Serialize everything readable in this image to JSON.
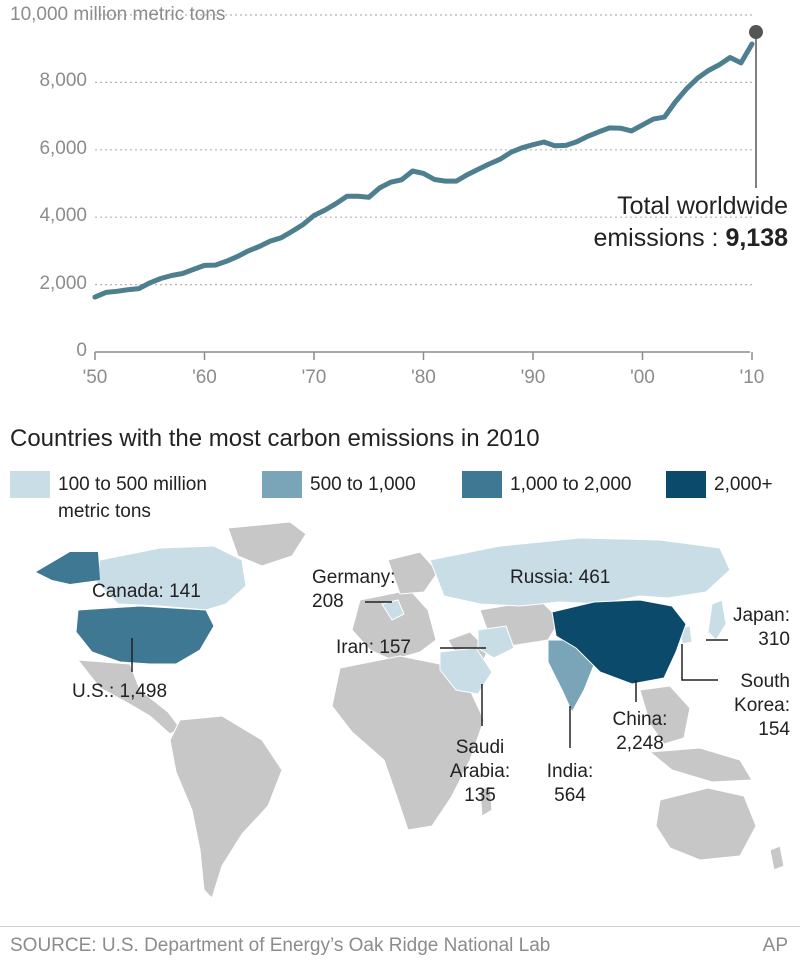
{
  "chart_data": {
    "type": "line",
    "unit_label": "10,000 million metric tons",
    "ylim": [
      0,
      10000
    ],
    "yticks": [
      0,
      2000,
      4000,
      6000,
      8000
    ],
    "ytick_labels": [
      "0",
      "2,000",
      "4,000",
      "6,000",
      "8,000"
    ],
    "xlim": [
      1950,
      2010
    ],
    "xticks": [
      1950,
      1960,
      1970,
      1980,
      1990,
      2000,
      2010
    ],
    "xtick_labels": [
      "'50",
      "'60",
      "'70",
      "'80",
      "'90",
      "'00",
      "'10"
    ],
    "grid": true,
    "series": [
      {
        "color": "#4e7f8f",
        "x": [
          1950,
          1951,
          1952,
          1953,
          1954,
          1955,
          1956,
          1957,
          1958,
          1959,
          1960,
          1961,
          1962,
          1963,
          1964,
          1965,
          1966,
          1967,
          1968,
          1969,
          1970,
          1971,
          1972,
          1973,
          1974,
          1975,
          1976,
          1977,
          1978,
          1979,
          1980,
          1981,
          1982,
          1983,
          1984,
          1985,
          1986,
          1987,
          1988,
          1989,
          1990,
          1991,
          1992,
          1993,
          1994,
          1995,
          1996,
          1997,
          1998,
          1999,
          2000,
          2001,
          2002,
          2003,
          2004,
          2005,
          2006,
          2007,
          2008,
          2009,
          2010
        ],
        "values": [
          1630,
          1770,
          1800,
          1850,
          1880,
          2050,
          2180,
          2270,
          2330,
          2450,
          2570,
          2580,
          2690,
          2830,
          3000,
          3130,
          3290,
          3390,
          3580,
          3780,
          4050,
          4210,
          4400,
          4620,
          4620,
          4590,
          4870,
          5040,
          5110,
          5370,
          5300,
          5120,
          5070,
          5070,
          5260,
          5420,
          5580,
          5720,
          5930,
          6060,
          6150,
          6230,
          6120,
          6130,
          6240,
          6400,
          6530,
          6650,
          6640,
          6560,
          6740,
          6910,
          6970,
          7420,
          7800,
          8120,
          8350,
          8520,
          8740,
          8580,
          9138
        ]
      }
    ],
    "annotation": {
      "year": 2010,
      "line1": "Total worldwide",
      "line2_prefix": "emissions : ",
      "line2_value": "9,138"
    }
  },
  "map": {
    "title": "Countries with the most carbon emissions in 2010",
    "legend": [
      {
        "label": "100 to 500 million metric tons",
        "color": "#c9dde6"
      },
      {
        "label": "500 to 1,000",
        "color": "#7aa4b8"
      },
      {
        "label": "1,000 to 2,000",
        "color": "#3f7892"
      },
      {
        "label": "2,000+",
        "color": "#0c4a6b"
      }
    ],
    "countries": [
      {
        "label": "Canada: 141"
      },
      {
        "label": "U.S.: 1,498"
      },
      {
        "label": "Germany:\n208"
      },
      {
        "label": "Russia: 461"
      },
      {
        "label": "Iran: 157"
      },
      {
        "label": "Japan:\n310"
      },
      {
        "label": "South\nKorea:\n154"
      },
      {
        "label": "China:\n2,248"
      },
      {
        "label": "India:\n564"
      },
      {
        "label": "Saudi\nArabia:\n135"
      }
    ]
  },
  "footer": {
    "source": "SOURCE: U.S. Department of Energy’s Oak Ridge National Lab",
    "credit": "AP"
  }
}
